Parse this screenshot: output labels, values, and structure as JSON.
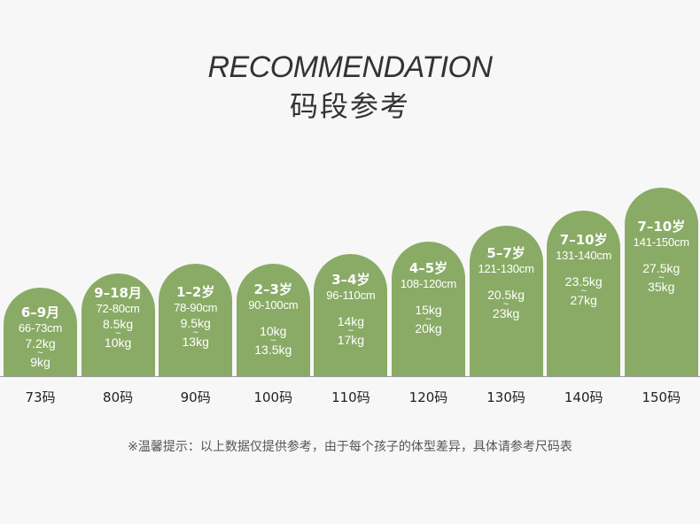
{
  "header": {
    "title_en": "RECOMMENDATION",
    "title_cn": "码段参考"
  },
  "colors": {
    "bar": "#8aab66",
    "text": "#333333",
    "background": "#f7f7f7"
  },
  "chart_data": {
    "type": "bar",
    "categories": [
      "73码",
      "80码",
      "90码",
      "100码",
      "110码",
      "120码",
      "130码",
      "140码",
      "150码"
    ],
    "bars": [
      {
        "size": "73码",
        "age": "6–9月",
        "height": "66-73cm",
        "weight_min": "7.2kg",
        "weight_max": "9kg"
      },
      {
        "size": "80码",
        "age": "9–18月",
        "height": "72-80cm",
        "weight_min": "8.5kg",
        "weight_max": "10kg"
      },
      {
        "size": "90码",
        "age": "1–2岁",
        "height": "78-90cm",
        "weight_min": "9.5kg",
        "weight_max": "13kg"
      },
      {
        "size": "100码",
        "age": "2–3岁",
        "height": "90-100cm",
        "weight_min": "10kg",
        "weight_max": "13.5kg"
      },
      {
        "size": "110码",
        "age": "3–4岁",
        "height": "96-110cm",
        "weight_min": "14kg",
        "weight_max": "17kg"
      },
      {
        "size": "120码",
        "age": "4–5岁",
        "height": "108-120cm",
        "weight_min": "15kg",
        "weight_max": "20kg"
      },
      {
        "size": "130码",
        "age": "5–7岁",
        "height": "121-130cm",
        "weight_min": "20.5kg",
        "weight_max": "23kg"
      },
      {
        "size": "140码",
        "age": "7–10岁",
        "height": "131-140cm",
        "weight_min": "23.5kg",
        "weight_max": "27kg"
      },
      {
        "size": "150码",
        "age": "7–10岁",
        "height": "141-150cm",
        "weight_min": "27.5kg",
        "weight_max": "35kg"
      }
    ],
    "tilde": "~"
  },
  "footer": {
    "note": "※温馨提示：以上数据仅提供参考，由于每个孩子的体型差异，具体请参考尺码表"
  }
}
